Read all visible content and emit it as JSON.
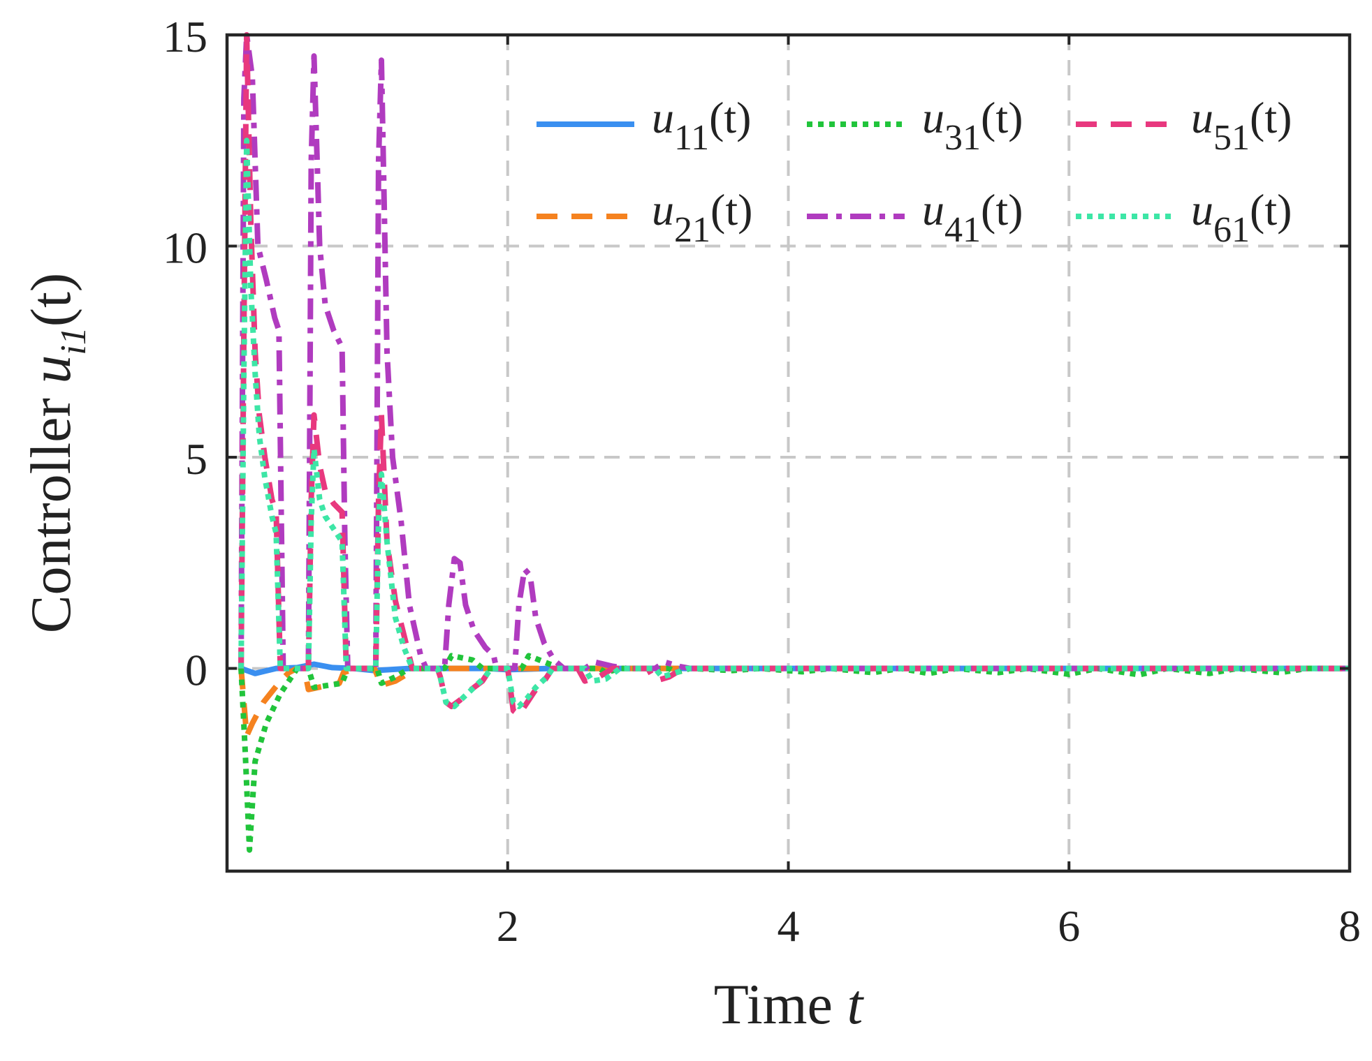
{
  "chart_data": {
    "type": "line",
    "xlabel_prefix": "Time ",
    "xlabel_var": "t",
    "ylabel_prefix": "Controller ",
    "ylabel_var": "u",
    "ylabel_sub": "i1",
    "ylabel_suffix": "(t)",
    "xlim": [
      0,
      8
    ],
    "ylim": [
      -4.8,
      15
    ],
    "xticks": [
      2,
      4,
      6,
      8
    ],
    "yticks": [
      0,
      5,
      10,
      15
    ],
    "grid": true,
    "legend_position": "top-right",
    "series": [
      {
        "name": "u11(t)",
        "var": "u",
        "sub": "11",
        "suffix": "(t)",
        "color": "#3a8ff0",
        "style": "solid",
        "points": [
          [
            0.1,
            0
          ],
          [
            0.2,
            -0.12
          ],
          [
            0.35,
            0
          ],
          [
            0.5,
            0.02
          ],
          [
            0.62,
            0.1
          ],
          [
            0.75,
            0.02
          ],
          [
            0.9,
            0
          ],
          [
            1.05,
            -0.05
          ],
          [
            1.3,
            0
          ],
          [
            1.6,
            0
          ],
          [
            1.85,
            0
          ],
          [
            2.0,
            -0.03
          ],
          [
            2.3,
            0
          ],
          [
            3.0,
            0
          ],
          [
            8.0,
            0
          ]
        ]
      },
      {
        "name": "u21(t)",
        "var": "u",
        "sub": "21",
        "suffix": "(t)",
        "color": "#f5821f",
        "style": "dash",
        "points": [
          [
            0.1,
            0
          ],
          [
            0.14,
            -1.6
          ],
          [
            0.18,
            -1.3
          ],
          [
            0.26,
            -0.8
          ],
          [
            0.38,
            -0.3
          ],
          [
            0.44,
            -0.1
          ],
          [
            0.5,
            0
          ],
          [
            0.55,
            0
          ],
          [
            0.58,
            -0.5
          ],
          [
            0.65,
            -0.45
          ],
          [
            0.8,
            -0.35
          ],
          [
            0.83,
            -0.1
          ],
          [
            0.92,
            0
          ],
          [
            1.05,
            0
          ],
          [
            1.1,
            -0.4
          ],
          [
            1.2,
            -0.3
          ],
          [
            1.35,
            0
          ],
          [
            1.5,
            0
          ],
          [
            1.55,
            -0.1
          ],
          [
            1.58,
            0
          ],
          [
            8.0,
            0
          ]
        ]
      },
      {
        "name": "u31(t)",
        "var": "u",
        "sub": "31",
        "suffix": "(t)",
        "color": "#21c43b",
        "style": "dot",
        "points": [
          [
            0.1,
            0
          ],
          [
            0.13,
            -2.0
          ],
          [
            0.16,
            -4.3
          ],
          [
            0.2,
            -2.2
          ],
          [
            0.28,
            -1.3
          ],
          [
            0.38,
            -0.6
          ],
          [
            0.45,
            -0.25
          ],
          [
            0.5,
            0
          ],
          [
            0.58,
            0
          ],
          [
            0.62,
            -0.45
          ],
          [
            0.72,
            -0.4
          ],
          [
            0.82,
            -0.35
          ],
          [
            0.86,
            0
          ],
          [
            1.07,
            0
          ],
          [
            1.1,
            -0.35
          ],
          [
            1.2,
            -0.2
          ],
          [
            1.3,
            0
          ],
          [
            1.55,
            0
          ],
          [
            1.6,
            0.3
          ],
          [
            1.75,
            0.2
          ],
          [
            1.82,
            0
          ],
          [
            2.1,
            0
          ],
          [
            2.15,
            0.3
          ],
          [
            2.3,
            0.1
          ],
          [
            2.4,
            0
          ],
          [
            2.65,
            0
          ],
          [
            2.7,
            -0.1
          ],
          [
            2.8,
            0
          ],
          [
            3.15,
            0
          ],
          [
            3.2,
            -0.1
          ],
          [
            3.3,
            0
          ],
          [
            3.6,
            -0.05
          ],
          [
            3.8,
            0
          ],
          [
            4.1,
            -0.08
          ],
          [
            4.3,
            0
          ],
          [
            4.6,
            -0.1
          ],
          [
            4.8,
            0
          ],
          [
            5.0,
            -0.12
          ],
          [
            5.2,
            0
          ],
          [
            5.5,
            -0.1
          ],
          [
            5.7,
            0
          ],
          [
            6.0,
            -0.14
          ],
          [
            6.2,
            0
          ],
          [
            6.5,
            -0.15
          ],
          [
            6.7,
            0
          ],
          [
            7.0,
            -0.12
          ],
          [
            7.2,
            0
          ],
          [
            7.5,
            -0.1
          ],
          [
            7.7,
            0
          ],
          [
            8.0,
            0
          ]
        ]
      },
      {
        "name": "u41(t)",
        "var": "u",
        "sub": "41",
        "suffix": "(t)",
        "color": "#b03bbf",
        "style": "dashdot",
        "points": [
          [
            0.1,
            0
          ],
          [
            0.12,
            13.5
          ],
          [
            0.14,
            15.0
          ],
          [
            0.18,
            14.0
          ],
          [
            0.22,
            10.0
          ],
          [
            0.28,
            9.2
          ],
          [
            0.34,
            8.3
          ],
          [
            0.37,
            8.0
          ],
          [
            0.4,
            0
          ],
          [
            0.58,
            0
          ],
          [
            0.6,
            12.0
          ],
          [
            0.62,
            14.5
          ],
          [
            0.66,
            10.0
          ],
          [
            0.7,
            8.6
          ],
          [
            0.76,
            8.0
          ],
          [
            0.82,
            7.6
          ],
          [
            0.84,
            3.0
          ],
          [
            0.86,
            0
          ],
          [
            1.06,
            0
          ],
          [
            1.08,
            12.0
          ],
          [
            1.1,
            14.4
          ],
          [
            1.14,
            7.5
          ],
          [
            1.18,
            5.0
          ],
          [
            1.24,
            3.5
          ],
          [
            1.3,
            1.5
          ],
          [
            1.38,
            0.3
          ],
          [
            1.42,
            0
          ],
          [
            1.55,
            0
          ],
          [
            1.58,
            1.5
          ],
          [
            1.62,
            2.6
          ],
          [
            1.66,
            2.5
          ],
          [
            1.7,
            1.5
          ],
          [
            1.76,
            0.9
          ],
          [
            1.84,
            0.5
          ],
          [
            1.9,
            0.3
          ],
          [
            1.92,
            0
          ],
          [
            2.05,
            0
          ],
          [
            2.08,
            1.5
          ],
          [
            2.12,
            2.35
          ],
          [
            2.16,
            2.2
          ],
          [
            2.2,
            1.2
          ],
          [
            2.26,
            0.6
          ],
          [
            2.33,
            0.2
          ],
          [
            2.4,
            0
          ],
          [
            2.55,
            0
          ],
          [
            2.62,
            0.15
          ],
          [
            2.75,
            0.05
          ],
          [
            2.85,
            0
          ],
          [
            3.05,
            0
          ],
          [
            3.12,
            0.15
          ],
          [
            3.22,
            0.05
          ],
          [
            3.3,
            0
          ],
          [
            8.0,
            0
          ]
        ]
      },
      {
        "name": "u51(t)",
        "var": "u",
        "sub": "51",
        "suffix": "(t)",
        "color": "#e8387e",
        "style": "dash",
        "points": [
          [
            0.1,
            0
          ],
          [
            0.12,
            8.0
          ],
          [
            0.14,
            15.0
          ],
          [
            0.17,
            10.5
          ],
          [
            0.2,
            7.5
          ],
          [
            0.23,
            6.0
          ],
          [
            0.27,
            5.0
          ],
          [
            0.32,
            4.0
          ],
          [
            0.35,
            3.7
          ],
          [
            0.38,
            0
          ],
          [
            0.58,
            0
          ],
          [
            0.6,
            4.0
          ],
          [
            0.62,
            6.0
          ],
          [
            0.66,
            4.8
          ],
          [
            0.7,
            4.2
          ],
          [
            0.76,
            3.9
          ],
          [
            0.82,
            3.7
          ],
          [
            0.85,
            0
          ],
          [
            1.06,
            0
          ],
          [
            1.08,
            4.0
          ],
          [
            1.1,
            6.0
          ],
          [
            1.14,
            3.0
          ],
          [
            1.2,
            1.6
          ],
          [
            1.26,
            0.8
          ],
          [
            1.32,
            0
          ],
          [
            1.5,
            0
          ],
          [
            1.52,
            -0.2
          ],
          [
            1.56,
            -0.8
          ],
          [
            1.6,
            -0.9
          ],
          [
            1.66,
            -0.75
          ],
          [
            1.74,
            -0.5
          ],
          [
            1.82,
            -0.3
          ],
          [
            1.88,
            0
          ],
          [
            2.0,
            0
          ],
          [
            2.04,
            -1.0
          ],
          [
            2.08,
            -1.1
          ],
          [
            2.14,
            -0.8
          ],
          [
            2.2,
            -0.5
          ],
          [
            2.26,
            -0.3
          ],
          [
            2.32,
            0
          ],
          [
            2.5,
            0
          ],
          [
            2.55,
            -0.3
          ],
          [
            2.65,
            -0.2
          ],
          [
            2.75,
            0
          ],
          [
            3.0,
            0
          ],
          [
            3.05,
            -0.3
          ],
          [
            3.15,
            -0.2
          ],
          [
            3.25,
            0
          ],
          [
            8.0,
            0
          ]
        ]
      },
      {
        "name": "u61(t)",
        "var": "u",
        "sub": "61",
        "suffix": "(t)",
        "color": "#3de6a6",
        "style": "dot",
        "points": [
          [
            0.1,
            0
          ],
          [
            0.12,
            7.0
          ],
          [
            0.14,
            12.5
          ],
          [
            0.17,
            9.0
          ],
          [
            0.2,
            7.0
          ],
          [
            0.23,
            5.5
          ],
          [
            0.27,
            4.5
          ],
          [
            0.32,
            3.6
          ],
          [
            0.35,
            3.2
          ],
          [
            0.38,
            0
          ],
          [
            0.58,
            0
          ],
          [
            0.6,
            3.5
          ],
          [
            0.62,
            5.2
          ],
          [
            0.66,
            4.0
          ],
          [
            0.7,
            3.6
          ],
          [
            0.76,
            3.3
          ],
          [
            0.82,
            3.0
          ],
          [
            0.85,
            0
          ],
          [
            1.06,
            0
          ],
          [
            1.08,
            3.5
          ],
          [
            1.1,
            4.6
          ],
          [
            1.14,
            3.0
          ],
          [
            1.2,
            1.2
          ],
          [
            1.26,
            0.5
          ],
          [
            1.32,
            0
          ],
          [
            1.5,
            0
          ],
          [
            1.52,
            -0.2
          ],
          [
            1.56,
            -0.8
          ],
          [
            1.62,
            -0.9
          ],
          [
            1.68,
            -0.7
          ],
          [
            1.76,
            -0.45
          ],
          [
            1.84,
            -0.2
          ],
          [
            1.88,
            0
          ],
          [
            2.0,
            0
          ],
          [
            2.04,
            -0.8
          ],
          [
            2.08,
            -0.9
          ],
          [
            2.14,
            -0.7
          ],
          [
            2.2,
            -0.45
          ],
          [
            2.28,
            -0.2
          ],
          [
            2.32,
            0
          ],
          [
            2.55,
            0
          ],
          [
            2.6,
            -0.3
          ],
          [
            2.7,
            -0.25
          ],
          [
            2.8,
            0
          ],
          [
            3.05,
            0
          ],
          [
            3.1,
            -0.2
          ],
          [
            3.2,
            -0.1
          ],
          [
            3.28,
            0
          ],
          [
            8.0,
            0
          ]
        ]
      }
    ]
  }
}
